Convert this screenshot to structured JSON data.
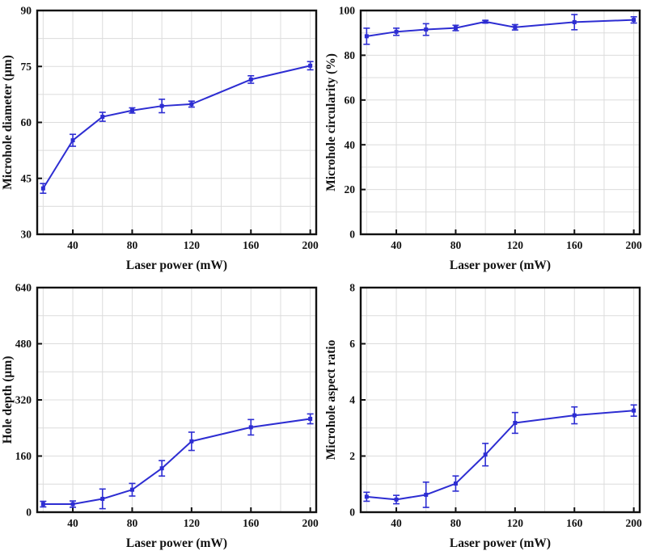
{
  "figure": {
    "background": "#ffffff",
    "axis_color": "#111111",
    "grid_color": "#dcdcdc",
    "text_color": "#111111"
  },
  "chart_data": [
    {
      "id": "microhole-diameter",
      "type": "line",
      "title": "",
      "xlabel": "Laser power (mW)",
      "ylabel": "Microhole diameter (µm)",
      "x": [
        20,
        40,
        60,
        80,
        100,
        120,
        160,
        200
      ],
      "y": [
        42.3,
        55.2,
        61.5,
        63.2,
        64.4,
        64.9,
        71.5,
        75.2
      ],
      "yerr": [
        1.3,
        1.6,
        1.2,
        0.7,
        1.8,
        0.8,
        1.0,
        1.1
      ],
      "xlim": [
        16,
        204
      ],
      "ylim": [
        30,
        90
      ],
      "xticks": [
        40,
        80,
        120,
        160,
        200
      ],
      "yticks": [
        30,
        45,
        60,
        75,
        90
      ],
      "xgrid_step": 20,
      "ygrid_step": 7.5,
      "grid": true,
      "legend": "none",
      "line_color": "#2d2dd2",
      "marker": "square"
    },
    {
      "id": "microhole-circularity",
      "type": "line",
      "title": "",
      "xlabel": "Laser power (mW)",
      "ylabel": "Microhole circularity (%)",
      "x": [
        20,
        40,
        60,
        80,
        100,
        120,
        160,
        200
      ],
      "y": [
        88.5,
        90.5,
        91.5,
        92.2,
        95.0,
        92.5,
        94.8,
        95.8
      ],
      "yerr": [
        3.6,
        1.6,
        2.6,
        1.2,
        0.6,
        1.2,
        3.4,
        1.4
      ],
      "xlim": [
        16,
        204
      ],
      "ylim": [
        0,
        100
      ],
      "xticks": [
        40,
        80,
        120,
        160,
        200
      ],
      "yticks": [
        0,
        20,
        40,
        60,
        80,
        100
      ],
      "xgrid_step": 20,
      "ygrid_step": 10,
      "grid": true,
      "legend": "none",
      "line_color": "#2d2dd2",
      "marker": "square"
    },
    {
      "id": "hole-depth",
      "type": "line",
      "title": "",
      "xlabel": "Laser power (mW)",
      "ylabel": "Hole depth (µm)",
      "x": [
        20,
        40,
        60,
        80,
        100,
        120,
        160,
        200
      ],
      "y": [
        23,
        23,
        38,
        64,
        125,
        202,
        242,
        266
      ],
      "yerr": [
        8,
        9,
        28,
        18,
        22,
        26,
        22,
        14
      ],
      "xlim": [
        16,
        204
      ],
      "ylim": [
        0,
        640
      ],
      "xticks": [
        40,
        80,
        120,
        160,
        200
      ],
      "yticks": [
        0,
        160,
        320,
        480,
        640
      ],
      "xgrid_step": 20,
      "ygrid_step": 80,
      "grid": true,
      "legend": "none",
      "line_color": "#2d2dd2",
      "marker": "square"
    },
    {
      "id": "microhole-aspect-ratio",
      "type": "line",
      "title": "",
      "xlabel": "Laser power (mW)",
      "ylabel": "Microhole aspect ratio",
      "x": [
        20,
        40,
        60,
        80,
        100,
        120,
        160,
        200
      ],
      "y": [
        0.55,
        0.45,
        0.62,
        1.02,
        2.05,
        3.18,
        3.45,
        3.62
      ],
      "yerr": [
        0.16,
        0.15,
        0.45,
        0.27,
        0.4,
        0.37,
        0.3,
        0.2
      ],
      "xlim": [
        16,
        204
      ],
      "ylim": [
        0,
        8
      ],
      "xticks": [
        40,
        80,
        120,
        160,
        200
      ],
      "yticks": [
        0,
        2,
        4,
        6,
        8
      ],
      "xgrid_step": 20,
      "ygrid_step": 1,
      "grid": true,
      "legend": "none",
      "line_color": "#2d2dd2",
      "marker": "square"
    }
  ]
}
